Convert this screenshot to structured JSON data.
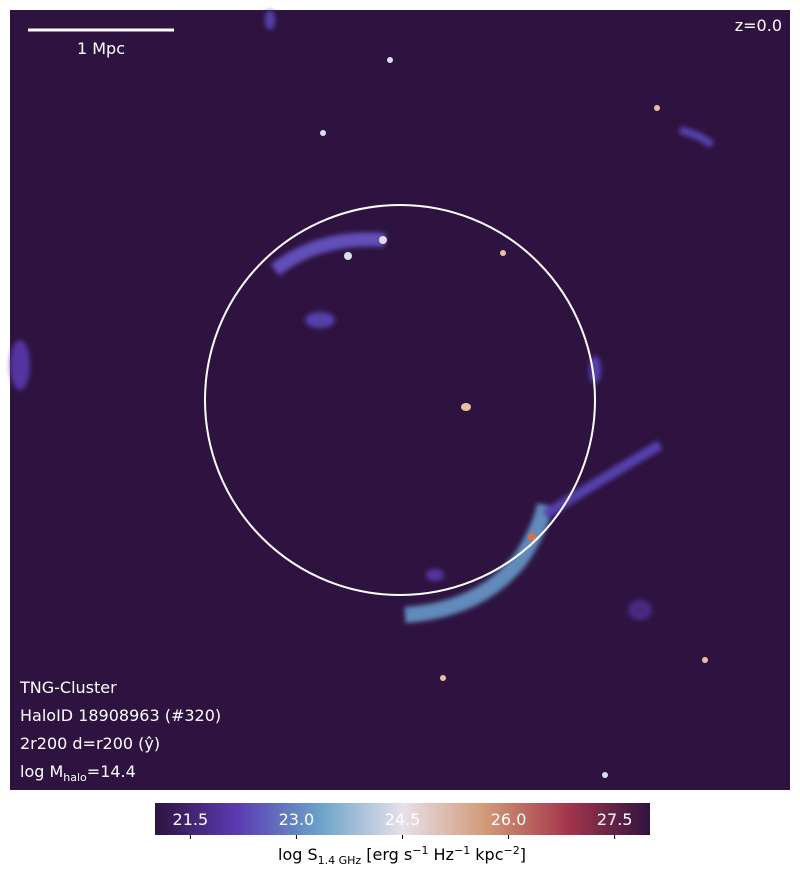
{
  "map": {
    "scale_bar": "1 Mpc",
    "redshift": "z=0.0",
    "info": [
      "TNG-Cluster",
      "HaloID 18908963 (#320)",
      "2r200 d=r200 (ŷ)"
    ],
    "mass": {
      "prefix": "log M",
      "sub": "halo",
      "suffix": "=14.4"
    }
  },
  "chart_data": {
    "type": "colorbar",
    "xlim": [
      21,
      28
    ],
    "xticks": [
      21.5,
      {
        "value": 23,
        "label": "23.0"
      },
      24.5,
      {
        "value": 26,
        "label": "26.0"
      },
      27.5
    ],
    "colors": [
      "#2e1340",
      "#5b3bb3",
      "#6aa3c9",
      "#e8e0ea",
      "#d19a78",
      "#a5364c",
      "#2e1340"
    ],
    "label": {
      "prefix": "log S",
      "sub": "1.4 GHz",
      "mid": " [erg s",
      "sup1": "−1",
      "mid2": " Hz",
      "sup2": "−1",
      "mid3": " kpc",
      "sup3": "−2",
      "suffix": "]"
    }
  }
}
